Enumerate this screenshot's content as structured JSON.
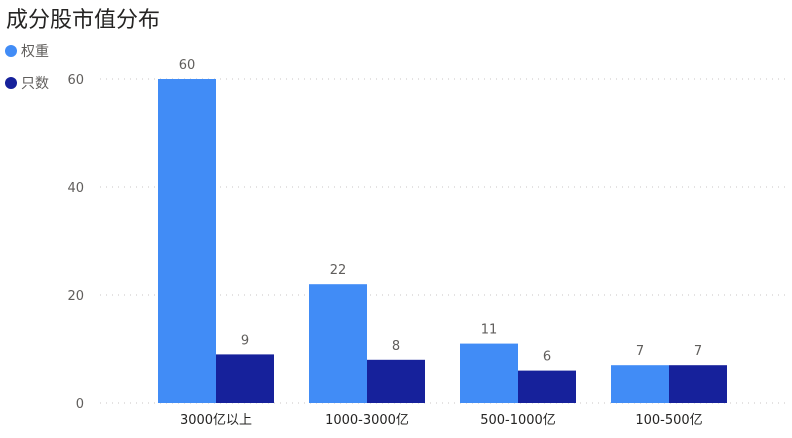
{
  "chart_data": {
    "type": "bar",
    "title": "成分股市值分布",
    "categories": [
      "3000亿以上",
      "1000-3000亿",
      "500-1000亿",
      "100-500亿"
    ],
    "series": [
      {
        "name": "权重",
        "values": [
          60,
          22,
          11,
          7
        ],
        "color": "#418cf6"
      },
      {
        "name": "只数",
        "values": [
          9,
          8,
          6,
          7
        ],
        "color": "#16219b"
      }
    ],
    "yticks": [
      0,
      20,
      40,
      60
    ],
    "ylim": [
      0,
      60
    ],
    "grid": true,
    "legend_position": "top-left"
  }
}
